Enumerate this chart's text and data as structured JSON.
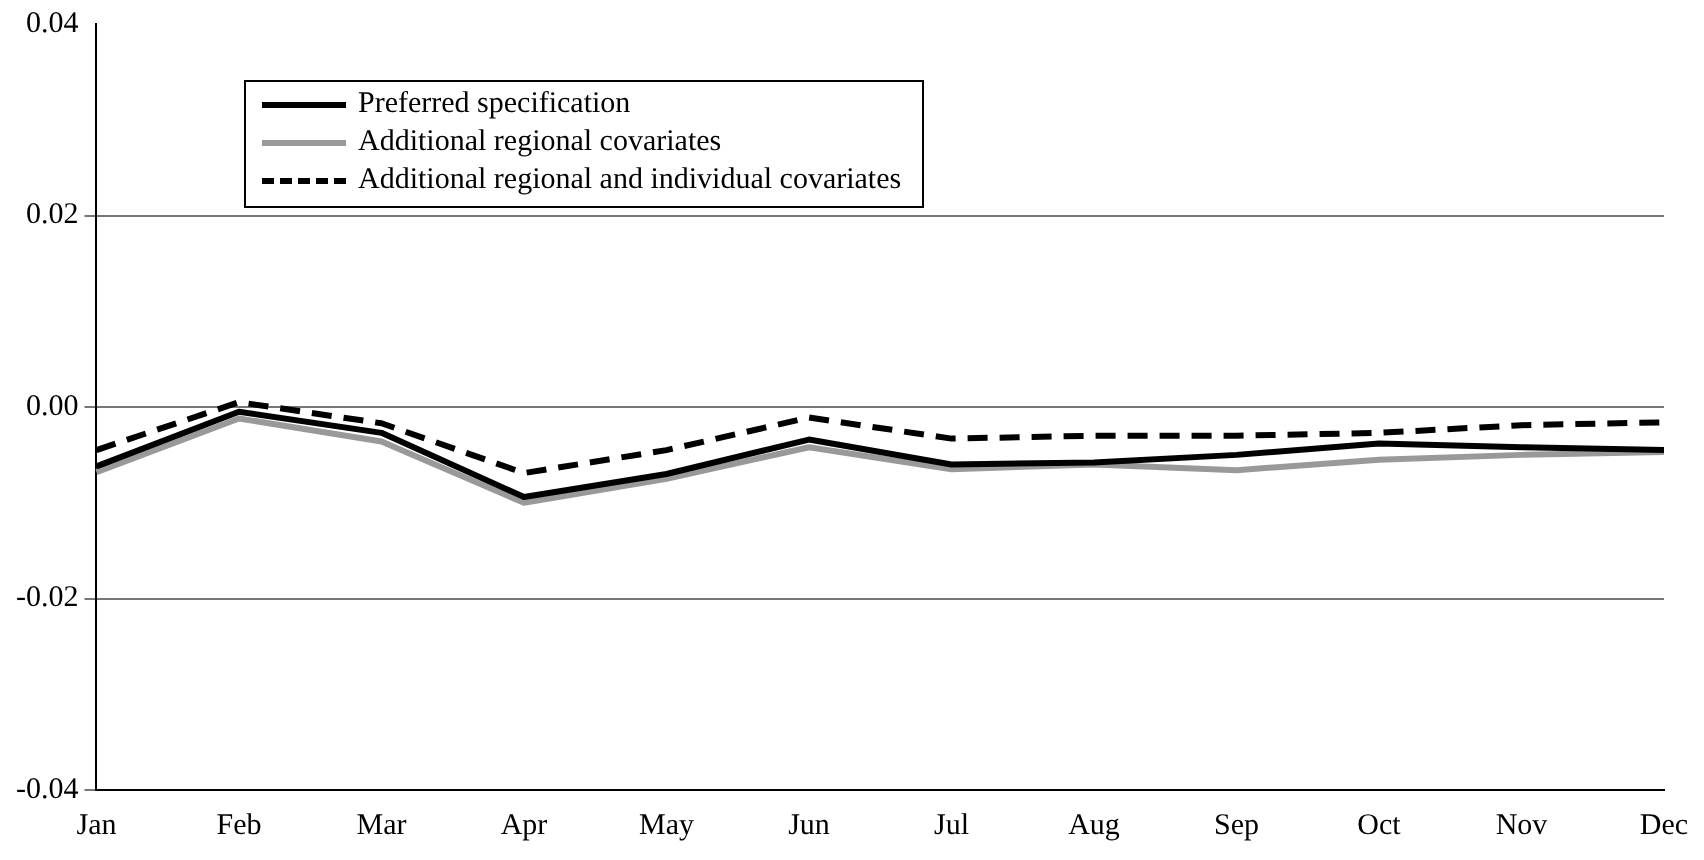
{
  "chart_data": {
    "type": "line",
    "categories": [
      "Jan",
      "Feb",
      "Mar",
      "Apr",
      "May",
      "Jun",
      "Jul",
      "Aug",
      "Sep",
      "Oct",
      "Nov",
      "Dec"
    ],
    "series": [
      {
        "name": "Preferred specification",
        "color": "#000000",
        "line_style": "solid",
        "values": [
          -0.0062,
          -0.0005,
          -0.0027,
          -0.0094,
          -0.007,
          -0.0034,
          -0.006,
          -0.0058,
          -0.005,
          -0.0038,
          -0.0042,
          -0.0045
        ]
      },
      {
        "name": "Additional regional covariates",
        "color": "#999999",
        "line_style": "solid",
        "values": [
          -0.0068,
          -0.0012,
          -0.0036,
          -0.01,
          -0.0075,
          -0.0042,
          -0.0065,
          -0.006,
          -0.0066,
          -0.0055,
          -0.005,
          -0.0047
        ]
      },
      {
        "name": "Additional regional and individual covariates",
        "color": "#000000",
        "line_style": "dashed",
        "values": [
          -0.0045,
          0.0005,
          -0.0017,
          -0.0069,
          -0.0045,
          -0.0011,
          -0.0033,
          -0.003,
          -0.003,
          -0.0027,
          -0.0019,
          -0.0016
        ]
      }
    ],
    "ylim": [
      -0.04,
      0.04
    ],
    "yticks": [
      {
        "value": -0.04,
        "label": "-0.04"
      },
      {
        "value": -0.02,
        "label": "-0.02"
      },
      {
        "value": 0,
        "label": "0.00"
      },
      {
        "value": 0.02,
        "label": "0.02"
      },
      {
        "value": 0.04,
        "label": "0.04"
      }
    ],
    "grid": "y",
    "legend": "top left",
    "marker": "none"
  }
}
